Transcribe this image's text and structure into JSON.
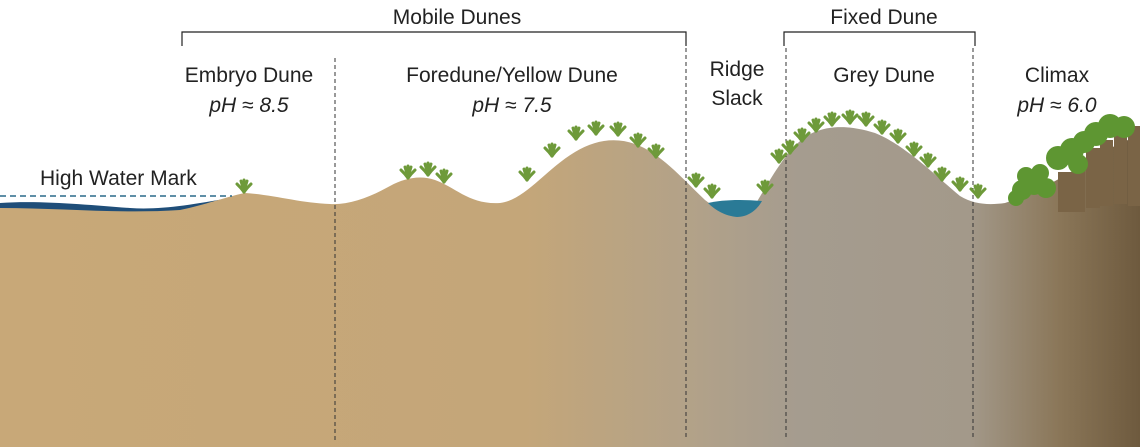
{
  "diagram": {
    "brackets": {
      "mobile": "Mobile Dunes",
      "fixed": "Fixed Dune"
    },
    "zones": [
      {
        "name": "Embryo Dune",
        "ph": "pH ≈ 8.5"
      },
      {
        "name": "Foredune/Yellow Dune",
        "ph": "pH ≈ 7.5"
      },
      {
        "name_line1": "Ridge",
        "name_line2": "Slack"
      },
      {
        "name": "Grey Dune"
      },
      {
        "name": "Climax",
        "ph": "pH ≈ 6.0"
      }
    ],
    "high_water_mark": "High Water Mark",
    "colors": {
      "sand": "#c8a878",
      "grey_dune": "#a59a8c",
      "climax_soil": "#6e5a3e",
      "water_sea": "#1f4e79",
      "water_slack": "#2a7a96",
      "grass": "#6e9a3a",
      "tree_foliage": "#5e9632",
      "tree_trunk": "#7a6446",
      "text": "#222222"
    }
  }
}
